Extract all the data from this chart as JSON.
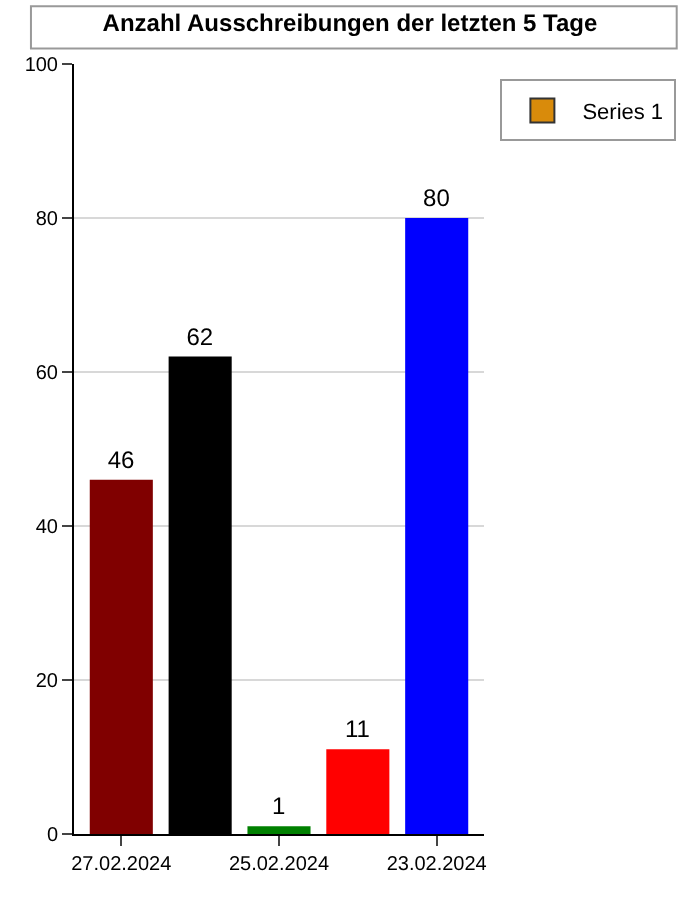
{
  "chart_data": {
    "type": "bar",
    "title": "Anzahl Ausschreibungen der letzten 5 Tage",
    "categories": [
      "27.02.2024",
      null,
      "25.02.2024",
      null,
      "23.02.2024"
    ],
    "series": [
      {
        "name": "Series 1",
        "color": "#d98b0b",
        "values": [
          46,
          62,
          1,
          11,
          80
        ],
        "colors": [
          "#800000",
          "#000000",
          "#008000",
          "#ff0000",
          "#0000ff"
        ]
      }
    ],
    "ylim": [
      0,
      100
    ],
    "yticks": [
      0,
      20,
      40,
      60,
      80,
      100
    ],
    "grid": "y",
    "legend": "top right",
    "data_labels": true
  }
}
